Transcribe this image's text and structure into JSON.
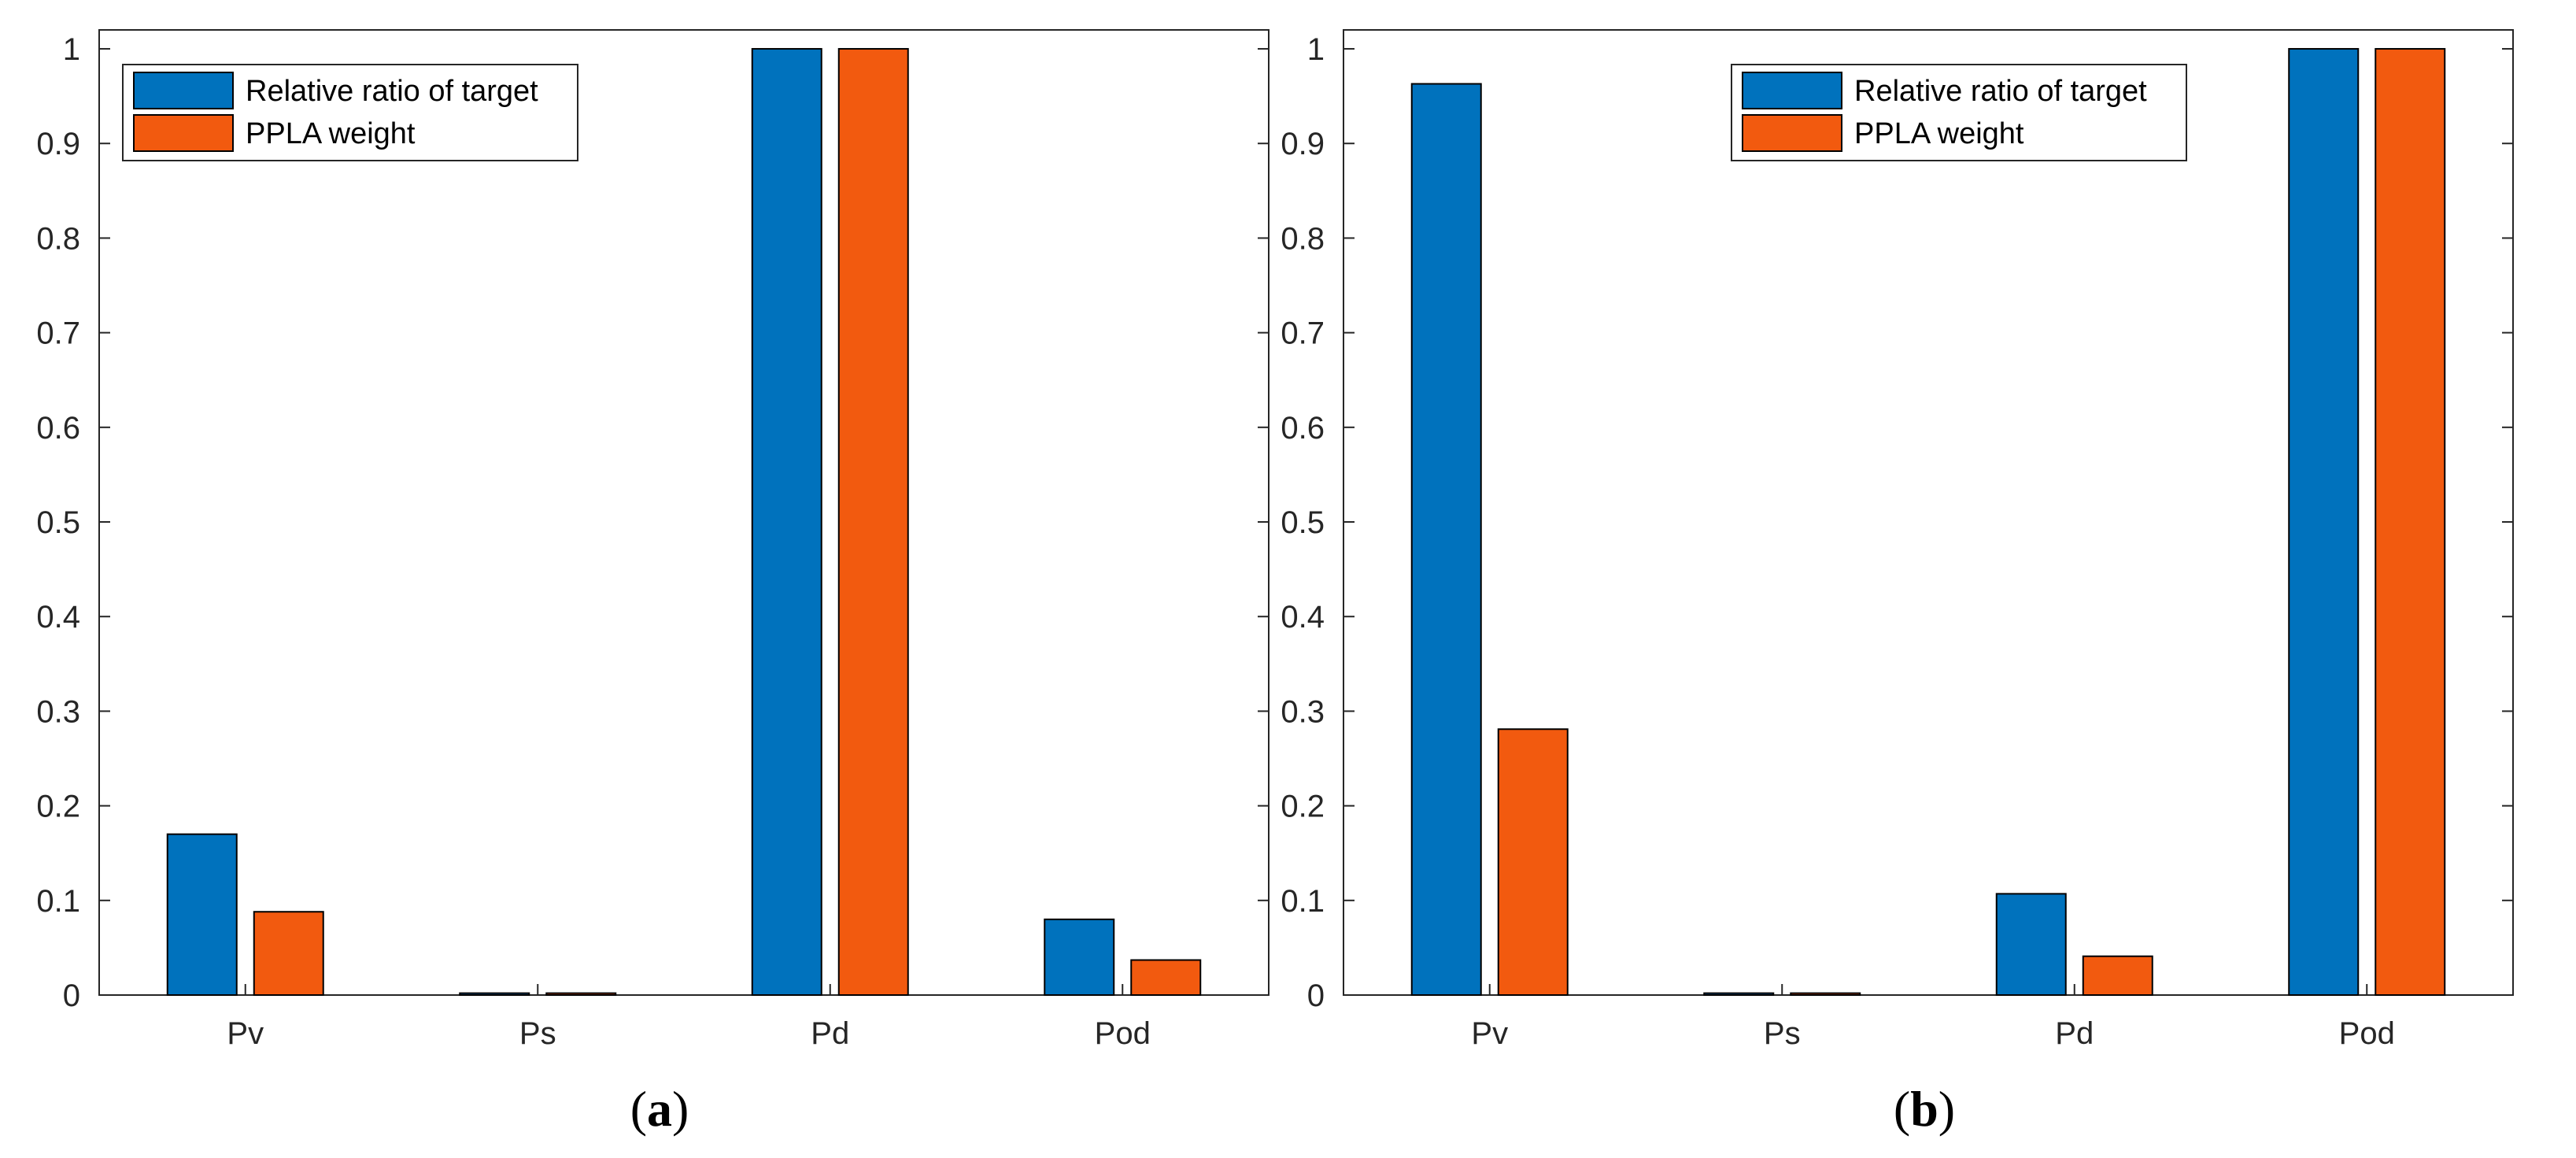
{
  "chart_data": [
    {
      "type": "bar",
      "panel_label": "a",
      "categories": [
        "Pv",
        "Ps",
        "Pd",
        "Pod"
      ],
      "series": [
        {
          "name": "Relative ratio of target",
          "color": "#0072BD",
          "values": [
            0.17,
            0.002,
            1.0,
            0.08
          ]
        },
        {
          "name": "PPLA weight",
          "color": "#F25A0F",
          "values": [
            0.088,
            0.002,
            1.0,
            0.037
          ]
        }
      ],
      "yticks": [
        "0",
        "0.1",
        "0.2",
        "0.3",
        "0.4",
        "0.5",
        "0.6",
        "0.7",
        "0.8",
        "0.9",
        "1"
      ],
      "ylim": [
        0,
        1.02
      ],
      "grid": false,
      "legend_position": "top-left"
    },
    {
      "type": "bar",
      "panel_label": "b",
      "categories": [
        "Pv",
        "Ps",
        "Pd",
        "Pod"
      ],
      "series": [
        {
          "name": "Relative ratio of target",
          "color": "#0072BD",
          "values": [
            0.963,
            0.002,
            0.107,
            1.0
          ]
        },
        {
          "name": "PPLA weight",
          "color": "#F25A0F",
          "values": [
            0.281,
            0.002,
            0.041,
            1.0
          ]
        }
      ],
      "yticks": [
        "0",
        "0.1",
        "0.2",
        "0.3",
        "0.4",
        "0.5",
        "0.6",
        "0.7",
        "0.8",
        "0.9",
        "1"
      ],
      "ylim": [
        0,
        1.02
      ],
      "grid": false,
      "legend_position": "top-right"
    }
  ]
}
